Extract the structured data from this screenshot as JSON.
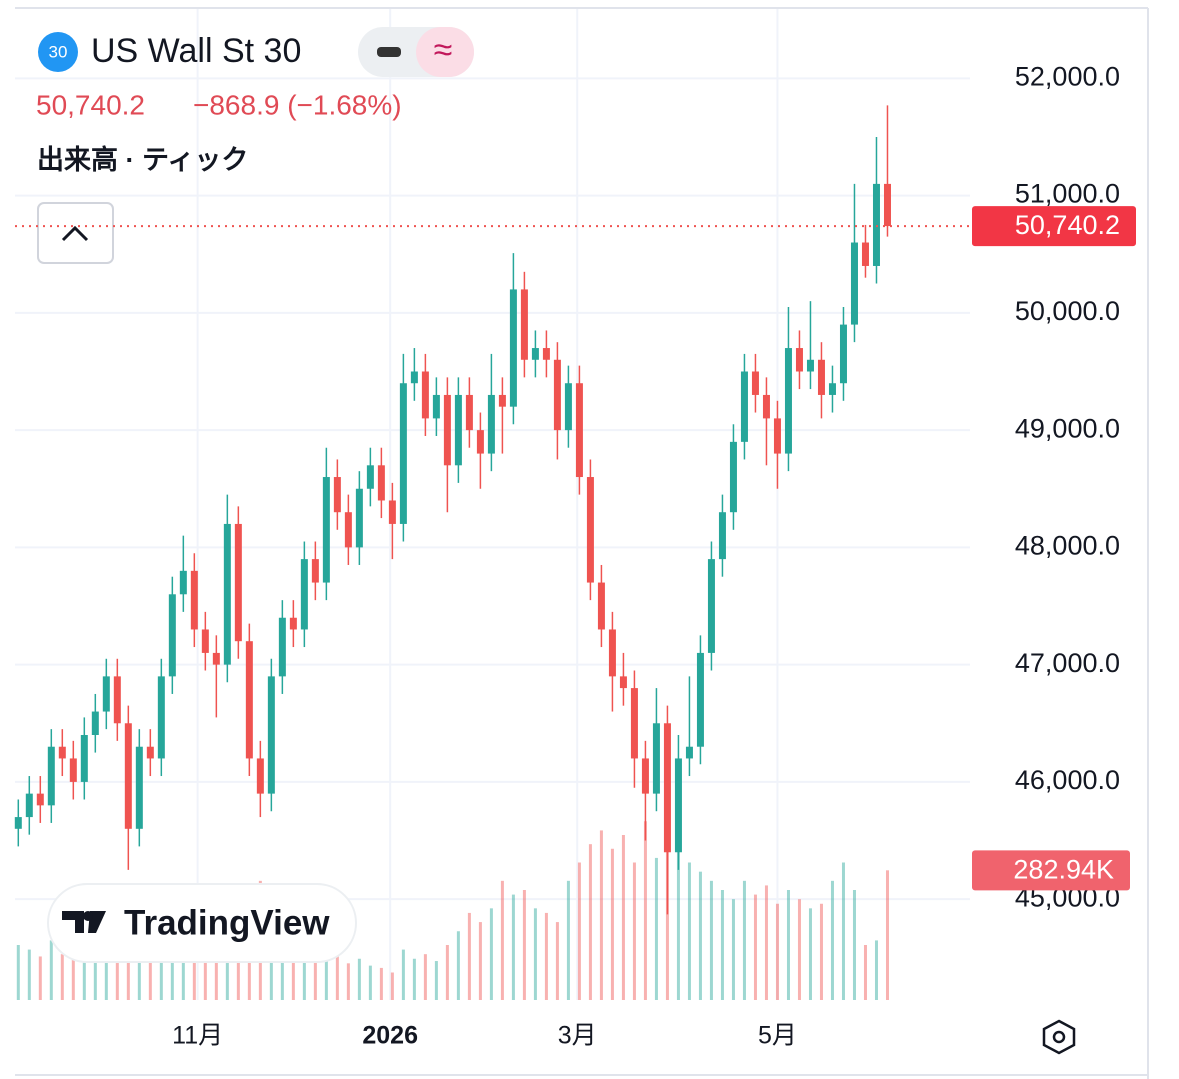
{
  "header": {
    "badge": "30",
    "title": "US Wall St 30",
    "price": "50,740.2",
    "change": "−868.9 (−1.68%)",
    "indicator": "出来高 · ティック",
    "logo": "TradingView"
  },
  "chart_data": {
    "type": "candlestick",
    "up_color": "#26a69a",
    "down_color": "#ef5350",
    "grid": true,
    "x": [
      0,
      1,
      2,
      3,
      4,
      5,
      6,
      7,
      8,
      9,
      10,
      11,
      12,
      13,
      14,
      15,
      16,
      17,
      18,
      19,
      20,
      21,
      22,
      23,
      24,
      25,
      26,
      27,
      28,
      29,
      30,
      31,
      32,
      33,
      34,
      35,
      36,
      37,
      38,
      39,
      40,
      41,
      42,
      43,
      44,
      45,
      46,
      47,
      48,
      49,
      50,
      51,
      52,
      53,
      54,
      55,
      56,
      57,
      58,
      59,
      60,
      61,
      62,
      63,
      64,
      65,
      66,
      67,
      68,
      69,
      70,
      71,
      72,
      73,
      74,
      75,
      76,
      77,
      78,
      79
    ],
    "open": [
      45600,
      45700,
      45900,
      45800,
      46300,
      46200,
      46000,
      46400,
      46600,
      46900,
      46500,
      45600,
      46300,
      46200,
      46900,
      47600,
      47800,
      47300,
      47100,
      47000,
      48200,
      47200,
      46200,
      45900,
      46900,
      47400,
      47300,
      47900,
      47700,
      48600,
      48300,
      48000,
      48500,
      48700,
      48400,
      48200,
      49400,
      49500,
      49100,
      49300,
      48700,
      49300,
      49000,
      48800,
      49300,
      49200,
      50200,
      49600,
      49700,
      49600,
      49000,
      49400,
      48600,
      47700,
      47300,
      46900,
      46800,
      46200,
      45900,
      46500,
      45400,
      46200,
      46300,
      47100,
      47900,
      48300,
      48900,
      49500,
      49300,
      49100,
      48800,
      49700,
      49500,
      49600,
      49300,
      49400,
      49900,
      50600,
      50400,
      51100
    ],
    "high": [
      45850,
      46050,
      46050,
      46450,
      46450,
      46350,
      46550,
      46750,
      47050,
      47050,
      46650,
      46450,
      46450,
      47050,
      47750,
      48100,
      47950,
      47450,
      47250,
      48450,
      48350,
      47350,
      46350,
      47050,
      47550,
      47550,
      48050,
      48050,
      48850,
      48750,
      48450,
      48650,
      48850,
      48850,
      48550,
      49650,
      49700,
      49650,
      49450,
      49450,
      49450,
      49450,
      49150,
      49650,
      49450,
      50510,
      50350,
      49850,
      49850,
      49750,
      49550,
      49550,
      48750,
      47850,
      47450,
      47100,
      46950,
      46350,
      46800,
      46650,
      46400,
      46900,
      47250,
      48050,
      48450,
      49050,
      49650,
      49650,
      49450,
      49250,
      50050,
      49850,
      50100,
      49750,
      49550,
      50050,
      51100,
      50750,
      51500,
      51770
    ],
    "low": [
      45450,
      45550,
      45650,
      45650,
      46050,
      45850,
      45850,
      46250,
      46450,
      46350,
      45250,
      45450,
      46050,
      46050,
      46750,
      47450,
      47150,
      46950,
      46550,
      46850,
      47050,
      46050,
      45700,
      45750,
      46750,
      47150,
      47150,
      47550,
      47550,
      48150,
      47850,
      47850,
      48350,
      48250,
      47900,
      48050,
      49250,
      48950,
      48950,
      48300,
      48550,
      48850,
      48500,
      48650,
      48800,
      49050,
      49450,
      49450,
      49450,
      48750,
      48850,
      48450,
      47550,
      47150,
      46600,
      46650,
      45950,
      45500,
      45750,
      44870,
      45250,
      46050,
      46150,
      46950,
      47750,
      48150,
      48750,
      49150,
      48700,
      48500,
      48650,
      49350,
      49350,
      49100,
      49150,
      49250,
      49750,
      50300,
      50250,
      50650
    ],
    "close": [
      45700,
      45900,
      45800,
      46300,
      46200,
      46000,
      46400,
      46600,
      46900,
      46500,
      45600,
      46300,
      46200,
      46900,
      47600,
      47800,
      47300,
      47100,
      47000,
      48200,
      47200,
      46200,
      45900,
      46900,
      47400,
      47300,
      47900,
      47700,
      48600,
      48300,
      48000,
      48500,
      48700,
      48400,
      48200,
      49400,
      49500,
      49100,
      49300,
      48700,
      49300,
      49000,
      48800,
      49300,
      49200,
      50200,
      49600,
      49700,
      49600,
      49000,
      49400,
      48600,
      47700,
      47300,
      46900,
      46800,
      46200,
      45900,
      46500,
      45400,
      46200,
      46300,
      47100,
      47900,
      48300,
      48900,
      49500,
      49300,
      49100,
      48800,
      49700,
      49500,
      49600,
      49300,
      49400,
      49900,
      50600,
      50400,
      51100,
      50740.2
    ],
    "volume": [
      120000,
      110000,
      95000,
      130000,
      100000,
      90000,
      115000,
      105000,
      140000,
      125000,
      210000,
      150000,
      110000,
      130000,
      160000,
      120000,
      100000,
      95000,
      110000,
      150000,
      180000,
      220000,
      260000,
      140000,
      110000,
      90000,
      100000,
      85000,
      120000,
      95000,
      80000,
      90000,
      75000,
      70000,
      60000,
      110000,
      90000,
      100000,
      85000,
      120000,
      150000,
      190000,
      170000,
      200000,
      260000,
      230000,
      240000,
      200000,
      190000,
      170000,
      260000,
      300000,
      340000,
      370000,
      330000,
      360000,
      300000,
      390000,
      310000,
      410000,
      350000,
      300000,
      280000,
      260000,
      240000,
      220000,
      260000,
      230000,
      250000,
      210000,
      240000,
      220000,
      200000,
      210000,
      260000,
      300000,
      240000,
      120000,
      130000,
      282940
    ],
    "volume_last_label": "282.94K",
    "xlim": [
      -0.3,
      86.5
    ],
    "ylim": [
      44140,
      52600
    ],
    "y2lim": [
      0,
      480000
    ],
    "xticks": [
      {
        "value": 16.3,
        "label": "11月"
      },
      {
        "value": 33.8,
        "label": "2026"
      },
      {
        "value": 50.8,
        "label": "3月"
      },
      {
        "value": 69,
        "label": "5月"
      }
    ],
    "yticks": [
      {
        "value": 45000,
        "label": "45,000.0"
      },
      {
        "value": 46000,
        "label": "46,000.0"
      },
      {
        "value": 47000,
        "label": "47,000.0"
      },
      {
        "value": 48000,
        "label": "48,000.0"
      },
      {
        "value": 49000,
        "label": "49,000.0"
      },
      {
        "value": 50000,
        "label": "50,000.0"
      },
      {
        "value": 51000,
        "label": "51,000.0"
      },
      {
        "value": 52000,
        "label": "52,000.0"
      }
    ]
  }
}
